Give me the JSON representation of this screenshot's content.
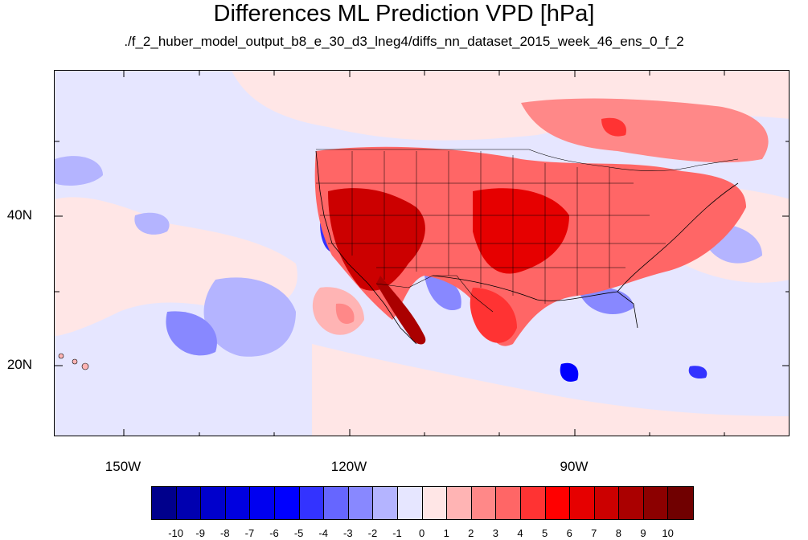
{
  "title": "Differences ML Prediction VPD [hPa]",
  "subtitle": "./f_2_huber_model_output_b8_e_30_d3_lneg4/diffs_nn_dataset_2015_week_46_ens_0_f_2",
  "map": {
    "lon_labels": [
      "150W",
      "120W",
      "90W"
    ],
    "lat_labels": [
      "40N",
      "20N"
    ],
    "background_color": "#e6e6ff"
  },
  "colorbar": {
    "labels": [
      "-10",
      "-9",
      "-8",
      "-7",
      "-6",
      "-5",
      "-4",
      "-3",
      "-2",
      "-1",
      "0",
      "1",
      "2",
      "3",
      "4",
      "5",
      "6",
      "7",
      "8",
      "9",
      "10"
    ],
    "colors": [
      "#00008c",
      "#0000b0",
      "#0000cc",
      "#0000e0",
      "#0000f0",
      "#0000ff",
      "#3333ff",
      "#6666ff",
      "#8888ff",
      "#b4b4ff",
      "#e6e6ff",
      "#ffe6e6",
      "#ffb4b4",
      "#ff8888",
      "#ff6666",
      "#ff3333",
      "#ff0000",
      "#e60000",
      "#cc0000",
      "#aa0000",
      "#8c0000",
      "#700000"
    ]
  }
}
